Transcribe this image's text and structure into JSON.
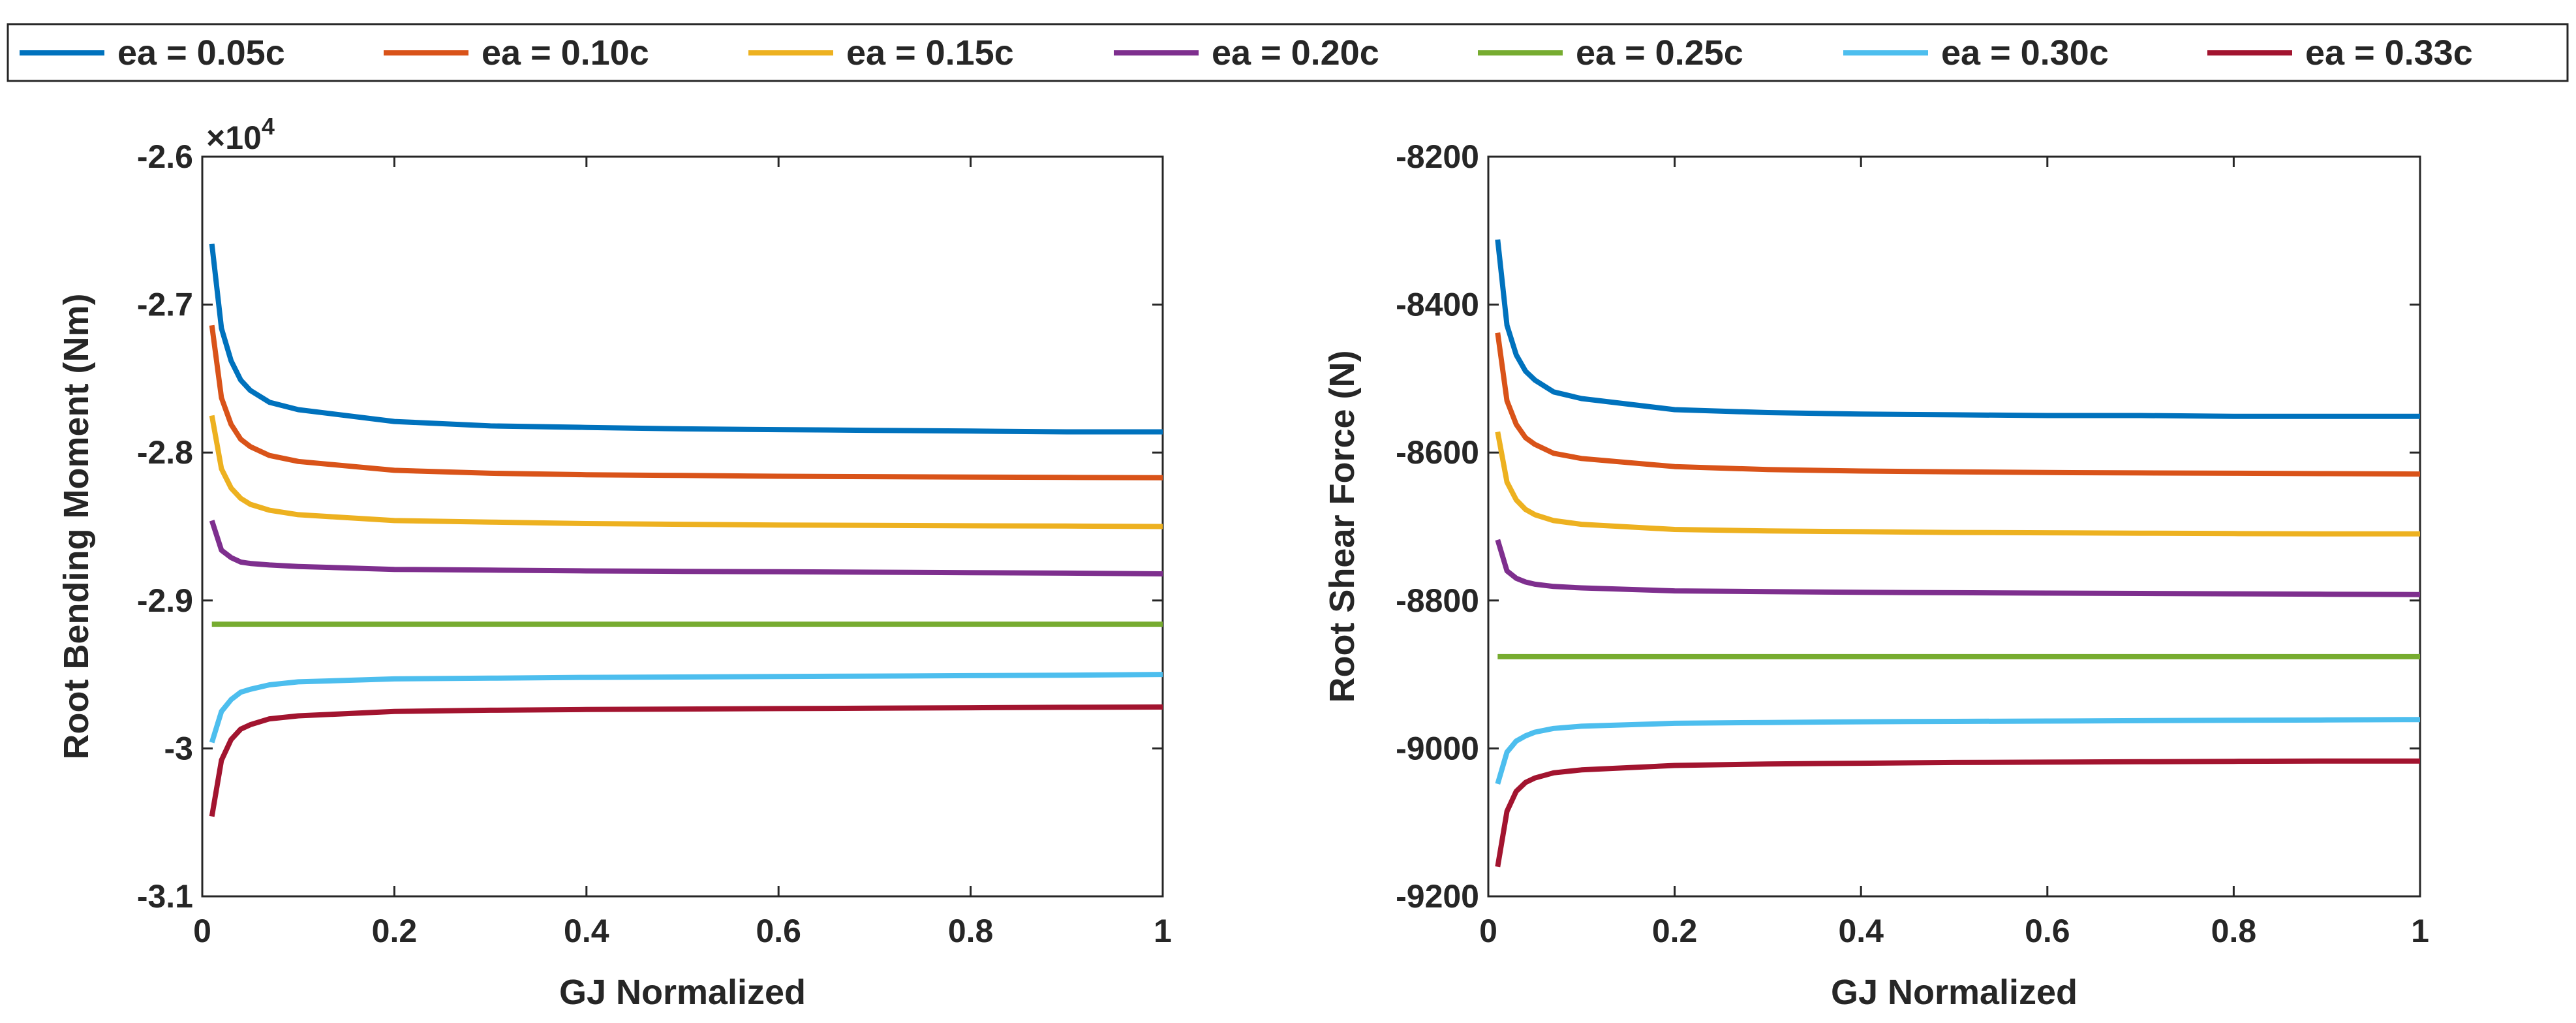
{
  "chart_data": [
    {
      "type": "line",
      "title": "",
      "xlabel": "GJ Normalized",
      "ylabel": "Root Bending Moment (Nm)",
      "exponent_label": "×10",
      "exponent_power": "4",
      "xlim": [
        0,
        1
      ],
      "ylim": [
        -3.1,
        -2.6
      ],
      "xticks": [
        0,
        0.2,
        0.4,
        0.6,
        0.8,
        1
      ],
      "xtick_labels": [
        "0",
        "0.2",
        "0.4",
        "0.6",
        "0.8",
        "1"
      ],
      "yticks": [
        -3.1,
        -3.0,
        -2.9,
        -2.8,
        -2.7,
        -2.6
      ],
      "ytick_labels": [
        "-3.1",
        "-3",
        "-2.9",
        "-2.8",
        "-2.7",
        "-2.6"
      ],
      "x": [
        0.01,
        0.02,
        0.03,
        0.04,
        0.05,
        0.07,
        0.1,
        0.2,
        0.3,
        0.4,
        0.5,
        0.6,
        0.7,
        0.8,
        0.9,
        1.0
      ],
      "series": [
        {
          "name": "ea = 0.05c",
          "color": "#0072BD",
          "values": [
            -2.659,
            -2.716,
            -2.738,
            -2.751,
            -2.758,
            -2.766,
            -2.771,
            -2.779,
            -2.782,
            -2.783,
            -2.784,
            -2.7845,
            -2.785,
            -2.7855,
            -2.786,
            -2.786
          ]
        },
        {
          "name": "ea = 0.10c",
          "color": "#D95319",
          "values": [
            -2.714,
            -2.763,
            -2.781,
            -2.791,
            -2.796,
            -2.802,
            -2.806,
            -2.812,
            -2.814,
            -2.815,
            -2.8155,
            -2.816,
            -2.8163,
            -2.8166,
            -2.8168,
            -2.817
          ]
        },
        {
          "name": "ea = 0.15c",
          "color": "#EDB120",
          "values": [
            -2.775,
            -2.811,
            -2.824,
            -2.831,
            -2.835,
            -2.839,
            -2.842,
            -2.846,
            -2.847,
            -2.848,
            -2.8485,
            -2.849,
            -2.8492,
            -2.8495,
            -2.8497,
            -2.85
          ]
        },
        {
          "name": "ea = 0.20c",
          "color": "#7E2F8E",
          "values": [
            -2.846,
            -2.866,
            -2.871,
            -2.874,
            -2.875,
            -2.876,
            -2.877,
            -2.879,
            -2.8795,
            -2.88,
            -2.8803,
            -2.8806,
            -2.8809,
            -2.8812,
            -2.8815,
            -2.882
          ]
        },
        {
          "name": "ea = 0.25c",
          "color": "#77AC30",
          "values": [
            -2.916,
            -2.916,
            -2.916,
            -2.916,
            -2.916,
            -2.916,
            -2.916,
            -2.916,
            -2.916,
            -2.916,
            -2.916,
            -2.916,
            -2.916,
            -2.916,
            -2.916,
            -2.916
          ]
        },
        {
          "name": "ea = 0.30c",
          "color": "#4DBEEE",
          "values": [
            -2.996,
            -2.975,
            -2.967,
            -2.962,
            -2.96,
            -2.957,
            -2.955,
            -2.953,
            -2.9525,
            -2.952,
            -2.9517,
            -2.9514,
            -2.9511,
            -2.9508,
            -2.9505,
            -2.95
          ]
        },
        {
          "name": "ea = 0.33c",
          "color": "#A2142F",
          "values": [
            -3.046,
            -3.008,
            -2.994,
            -2.987,
            -2.984,
            -2.98,
            -2.978,
            -2.975,
            -2.9742,
            -2.9737,
            -2.9734,
            -2.9731,
            -2.9728,
            -2.9725,
            -2.9722,
            -2.972
          ]
        }
      ]
    },
    {
      "type": "line",
      "title": "",
      "xlabel": "GJ Normalized",
      "ylabel": "Root Shear Force (N)",
      "xlim": [
        0,
        1
      ],
      "ylim": [
        -9200,
        -8200
      ],
      "xticks": [
        0,
        0.2,
        0.4,
        0.6,
        0.8,
        1
      ],
      "xtick_labels": [
        "0",
        "0.2",
        "0.4",
        "0.6",
        "0.8",
        "1"
      ],
      "yticks": [
        -9200,
        -9000,
        -8800,
        -8600,
        -8400,
        -8200
      ],
      "ytick_labels": [
        "-9200",
        "-9000",
        "-8800",
        "-8600",
        "-8400",
        "-8200"
      ],
      "x": [
        0.01,
        0.02,
        0.03,
        0.04,
        0.05,
        0.07,
        0.1,
        0.2,
        0.3,
        0.4,
        0.5,
        0.6,
        0.7,
        0.8,
        0.9,
        1.0
      ],
      "series": [
        {
          "name": "ea = 0.05c",
          "color": "#0072BD",
          "values": [
            -8312,
            -8428,
            -8468,
            -8490,
            -8502,
            -8518,
            -8527,
            -8542,
            -8546,
            -8548,
            -8549,
            -8550,
            -8550,
            -8551,
            -8551,
            -8551
          ]
        },
        {
          "name": "ea = 0.10c",
          "color": "#D95319",
          "values": [
            -8438,
            -8530,
            -8562,
            -8580,
            -8589,
            -8601,
            -8608,
            -8619,
            -8623,
            -8625,
            -8626,
            -8627,
            -8627.5,
            -8628,
            -8628.5,
            -8629
          ]
        },
        {
          "name": "ea = 0.15c",
          "color": "#EDB120",
          "values": [
            -8572,
            -8640,
            -8664,
            -8677,
            -8684,
            -8692,
            -8697,
            -8704,
            -8706,
            -8707,
            -8708,
            -8708.5,
            -8709,
            -8709.5,
            -8710,
            -8710
          ]
        },
        {
          "name": "ea = 0.20c",
          "color": "#7E2F8E",
          "values": [
            -8718,
            -8760,
            -8770,
            -8775,
            -8778,
            -8781,
            -8783,
            -8787,
            -8788,
            -8789,
            -8789.5,
            -8790,
            -8790.5,
            -8791,
            -8791.5,
            -8792
          ]
        },
        {
          "name": "ea = 0.25c",
          "color": "#77AC30",
          "values": [
            -8876,
            -8876,
            -8876,
            -8876,
            -8876,
            -8876,
            -8876,
            -8876,
            -8876,
            -8876,
            -8876,
            -8876,
            -8876,
            -8876,
            -8876,
            -8876
          ]
        },
        {
          "name": "ea = 0.30c",
          "color": "#4DBEEE",
          "values": [
            -9048,
            -9005,
            -8990,
            -8983,
            -8978,
            -8973,
            -8970,
            -8966,
            -8965,
            -8964,
            -8963.5,
            -8963,
            -8962.5,
            -8962,
            -8961.5,
            -8961
          ]
        },
        {
          "name": "ea = 0.33c",
          "color": "#A2142F",
          "values": [
            -9160,
            -9085,
            -9058,
            -9046,
            -9040,
            -9033,
            -9029,
            -9023,
            -9021,
            -9020,
            -9019,
            -9018.5,
            -9018,
            -9017.5,
            -9017,
            -9017
          ]
        }
      ]
    }
  ],
  "legend": {
    "entries": [
      "ea = 0.05c",
      "ea = 0.10c",
      "ea = 0.15c",
      "ea = 0.20c",
      "ea = 0.25c",
      "ea = 0.30c",
      "ea = 0.33c"
    ]
  }
}
